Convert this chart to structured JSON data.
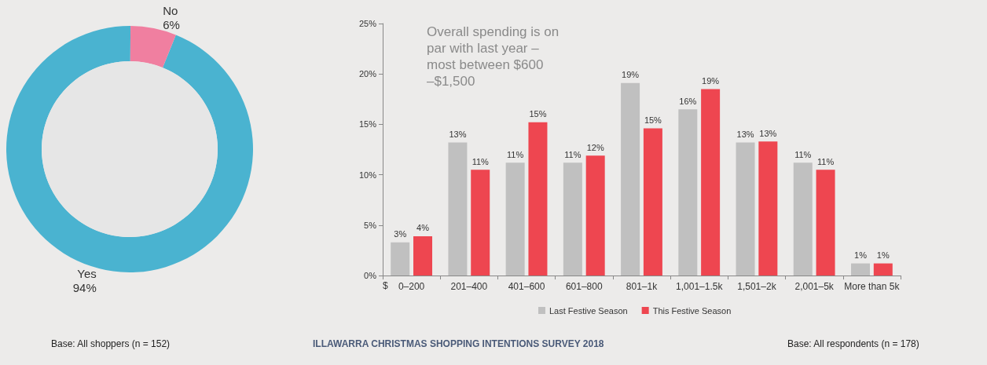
{
  "chart_data": [
    {
      "type": "donut",
      "categories": [
        "Yes",
        "No"
      ],
      "values": [
        94,
        6
      ],
      "value_labels": [
        "94%",
        "6%"
      ],
      "colors": [
        "#4ab3d0",
        "#f07fa0"
      ],
      "legend": false,
      "annotations": [
        "Base: All shoppers (n = 152)"
      ]
    },
    {
      "type": "bar",
      "categories": [
        "0–200",
        "201–400",
        "401–600",
        "601–800",
        "801–1k",
        "1,001–1.5k",
        "1,501–2k",
        "2,001–5k",
        "More than 5k"
      ],
      "series": [
        {
          "name": "Last Festive Season",
          "color": "#c0c0c0",
          "values": [
            3.3,
            13.2,
            11.2,
            11.2,
            19.1,
            16.5,
            13.2,
            11.2,
            1.2
          ],
          "value_labels": [
            "3%",
            "13%",
            "11%",
            "11%",
            "19%",
            "16%",
            "13%",
            "11%",
            "1%"
          ]
        },
        {
          "name": "This Festive Season",
          "color": "#ee4650",
          "values": [
            3.9,
            10.5,
            15.2,
            11.9,
            14.6,
            18.5,
            13.3,
            10.5,
            1.2
          ],
          "value_labels": [
            "4%",
            "11%",
            "15%",
            "12%",
            "15%",
            "19%",
            "13%",
            "11%",
            "1%"
          ]
        }
      ],
      "ylim": [
        0,
        25
      ],
      "yticks": [
        {
          "value": 0,
          "label": "0%"
        },
        {
          "value": 5,
          "label": "5%"
        },
        {
          "value": 10,
          "label": "10%"
        },
        {
          "value": 15,
          "label": "15%"
        },
        {
          "value": 20,
          "label": "20%"
        },
        {
          "value": 25,
          "label": "25%"
        }
      ],
      "grid": false,
      "legend": "bottom",
      "annotations": [
        "Overall spending is on par with last year – most between $600 –$1,500",
        "$",
        "Base: All respondents (n = 178)",
        "ILLAWARRA CHRISTMAS SHOPPING INTENTIONS SURVEY 2018"
      ]
    }
  ]
}
